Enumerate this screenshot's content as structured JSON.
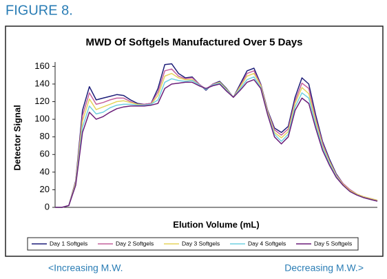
{
  "figure_label": "FIGURE 8.",
  "left_note": "<Increasing M.W.",
  "right_note": "Decreasing M.W.>",
  "chart_data": {
    "type": "line",
    "title": "MWD Of Softgels Manufactured Over 5 Days",
    "x_label": "Elution Volume (mL)",
    "y_label": "Detector Signal",
    "ylim": [
      0,
      165
    ],
    "yticks": [
      0,
      20,
      40,
      60,
      80,
      100,
      120,
      140,
      160
    ],
    "grid": false,
    "legend": "bottom",
    "series": [
      {
        "name": "Day 1 Softgels",
        "color": "#1c1c78",
        "values": [
          0,
          0,
          2,
          30,
          110,
          137,
          122,
          124,
          126,
          128,
          127,
          122,
          118,
          117,
          118,
          135,
          162,
          163,
          152,
          147,
          148,
          140,
          133,
          140,
          143,
          135,
          125,
          140,
          155,
          158,
          140,
          110,
          90,
          85,
          92,
          125,
          147,
          140,
          105,
          75,
          55,
          38,
          27,
          20,
          15,
          12,
          10,
          8
        ]
      },
      {
        "name": "Day 2 Softgels",
        "color": "#c4609c",
        "values": [
          0,
          0,
          2,
          29,
          104,
          130,
          117,
          119,
          122,
          124,
          124,
          120,
          117,
          117,
          118,
          131,
          155,
          157,
          149,
          146,
          147,
          140,
          134,
          140,
          142,
          134,
          125,
          138,
          152,
          155,
          139,
          109,
          88,
          82,
          89,
          121,
          141,
          135,
          101,
          73,
          53,
          37,
          27,
          20,
          15,
          12,
          10,
          8
        ]
      },
      {
        "name": "Day 3 Softgels",
        "color": "#e6d45a",
        "values": [
          0,
          0,
          2,
          28,
          98,
          123,
          111,
          114,
          117,
          120,
          121,
          119,
          117,
          116,
          117,
          127,
          149,
          152,
          147,
          145,
          145,
          139,
          134,
          139,
          142,
          134,
          125,
          137,
          149,
          152,
          138,
          108,
          85,
          79,
          86,
          118,
          136,
          129,
          98,
          70,
          52,
          36,
          26,
          19,
          15,
          12,
          10,
          8
        ]
      },
      {
        "name": "Day 4 Softgels",
        "color": "#6fd0e0",
        "values": [
          0,
          0,
          2,
          26,
          91,
          115,
          106,
          108,
          113,
          116,
          117,
          117,
          116,
          116,
          117,
          122,
          142,
          146,
          144,
          143,
          144,
          139,
          134,
          139,
          141,
          133,
          125,
          135,
          145,
          148,
          136,
          106,
          83,
          75,
          83,
          114,
          130,
          124,
          94,
          68,
          50,
          35,
          25,
          18,
          14,
          11,
          9,
          7
        ]
      },
      {
        "name": "Day 5 Softgels",
        "color": "#6a1c78",
        "values": [
          0,
          0,
          2,
          25,
          85,
          108,
          100,
          103,
          108,
          112,
          114,
          115,
          115,
          115,
          116,
          118,
          135,
          140,
          141,
          142,
          142,
          138,
          135,
          138,
          140,
          132,
          125,
          133,
          142,
          145,
          135,
          105,
          80,
          72,
          80,
          110,
          124,
          118,
          90,
          65,
          48,
          34,
          25,
          18,
          14,
          11,
          9,
          7
        ]
      }
    ]
  }
}
